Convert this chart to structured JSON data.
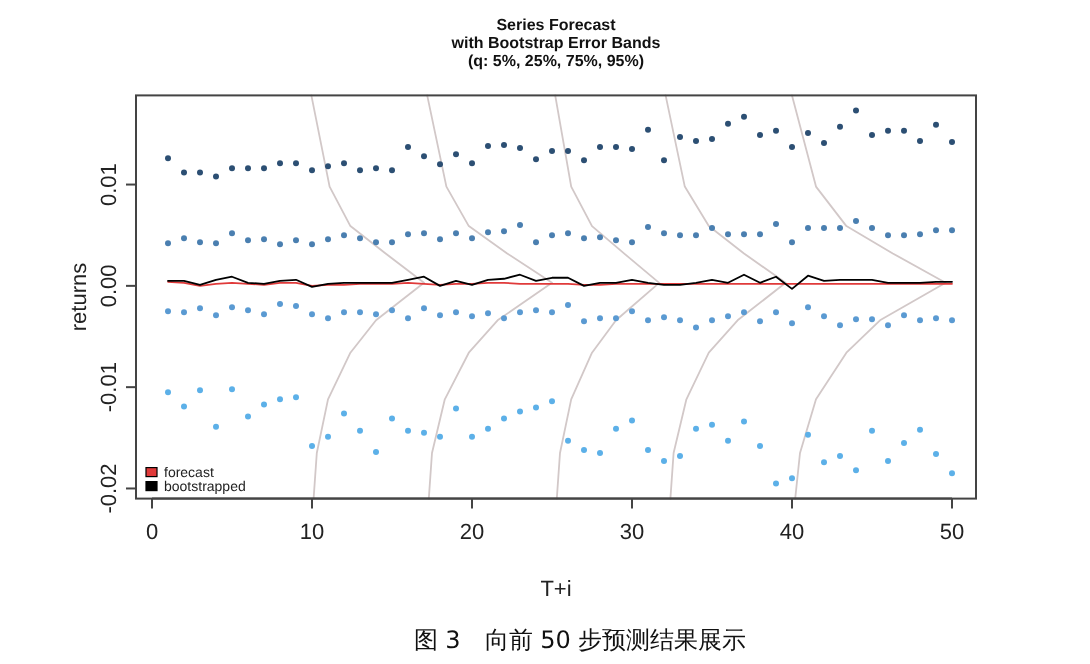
{
  "chart_data": {
    "type": "scatter",
    "title": "Series Forecast",
    "subtitle": "with Bootstrap Error Bands (q: 5%, 25%, 75%, 95%)",
    "xlabel": "T+i",
    "ylabel": "returns",
    "annotations": [
      "图 3　向前 50 步预测结果展示"
    ],
    "xlim": [
      -1,
      51.5
    ],
    "ylim": [
      -0.021,
      0.0188
    ],
    "xticks": [
      0,
      10,
      20,
      30,
      40,
      50
    ],
    "yticks": [
      -0.02,
      -0.01,
      {
        "value": 0,
        "label": "0.00"
      },
      0.01
    ],
    "legend": "bottom left",
    "marker": "circle",
    "x": [
      1,
      2,
      3,
      4,
      5,
      6,
      7,
      8,
      9,
      10,
      11,
      12,
      13,
      14,
      15,
      16,
      17,
      18,
      19,
      20,
      21,
      22,
      23,
      24,
      25,
      26,
      27,
      28,
      29,
      30,
      31,
      32,
      33,
      34,
      35,
      36,
      37,
      38,
      39,
      40,
      41,
      42,
      43,
      44,
      45,
      46,
      47,
      48,
      49,
      50
    ],
    "series": [
      {
        "type": "line",
        "color": "#d2c8c8",
        "marker": "none",
        "x": [
          9.96,
          11.1,
          12.4,
          14.6,
          17.0,
          14.0,
          12.4,
          11.0,
          10.3,
          10.1
        ],
        "values": [
          0.0188,
          0.0098,
          0.0059,
          0.0032,
          0.0003,
          -0.0034,
          -0.0066,
          -0.0112,
          -0.0165,
          -0.021
        ]
      },
      {
        "type": "line",
        "color": "#d2c8c8",
        "marker": "none",
        "x": [
          17.2,
          18.4,
          19.8,
          22.2,
          25.0,
          21.6,
          19.8,
          18.3,
          17.5,
          17.3
        ],
        "values": [
          0.0188,
          0.0098,
          0.0059,
          0.0032,
          0.0003,
          -0.0034,
          -0.0066,
          -0.0112,
          -0.0165,
          -0.021
        ]
      },
      {
        "type": "line",
        "color": "#d2c8c8",
        "marker": "none",
        "x": [
          25.2,
          26.2,
          27.5,
          29.5,
          31.7,
          29.0,
          27.5,
          26.2,
          25.5,
          25.3
        ],
        "values": [
          0.0188,
          0.0098,
          0.0059,
          0.0032,
          0.0003,
          -0.0034,
          -0.0066,
          -0.0112,
          -0.0165,
          -0.021
        ]
      },
      {
        "type": "line",
        "color": "#d2c8c8",
        "marker": "none",
        "x": [
          32.1,
          33.3,
          34.8,
          37.0,
          39.6,
          36.6,
          34.8,
          33.4,
          32.6,
          32.4
        ],
        "values": [
          0.0188,
          0.0098,
          0.0059,
          0.0032,
          0.0003,
          -0.0034,
          -0.0066,
          -0.0112,
          -0.0165,
          -0.021
        ]
      },
      {
        "type": "line",
        "color": "#d2c8c8",
        "marker": "none",
        "x": [
          40.0,
          41.5,
          43.4,
          46.3,
          49.6,
          45.5,
          43.4,
          41.5,
          40.5,
          40.2
        ],
        "values": [
          0.0188,
          0.0098,
          0.0059,
          0.0032,
          0.0003,
          -0.0034,
          -0.0066,
          -0.0112,
          -0.0165,
          -0.021
        ]
      },
      {
        "color": "#2c4f73",
        "values": [
          0.0126,
          0.0112,
          0.0112,
          0.0108,
          0.0116,
          0.0116,
          0.0116,
          0.0121,
          0.0121,
          0.0114,
          0.0118,
          0.0121,
          0.0114,
          0.0116,
          0.0114,
          0.0137,
          0.0128,
          0.012,
          0.013,
          0.0121,
          0.0138,
          0.0139,
          0.0136,
          0.0125,
          0.0133,
          0.0133,
          0.0124,
          0.0137,
          0.0137,
          0.0135,
          0.0154,
          0.0124,
          0.0147,
          0.0143,
          0.0145,
          0.016,
          0.0167,
          0.0149,
          0.0153,
          0.0137,
          0.0151,
          0.0141,
          0.0157,
          0.0173,
          0.0149,
          0.0153,
          0.0153,
          0.0143,
          0.0159,
          0.0142
        ]
      },
      {
        "color": "#4a7fb0",
        "values": [
          0.0042,
          0.0047,
          0.0043,
          0.0042,
          0.0052,
          0.0045,
          0.0046,
          0.0041,
          0.0045,
          0.0041,
          0.0046,
          0.005,
          0.0047,
          0.0043,
          0.0043,
          0.0051,
          0.0052,
          0.0046,
          0.0052,
          0.0047,
          0.0053,
          0.0054,
          0.006,
          0.0043,
          0.005,
          0.0052,
          0.0047,
          0.0048,
          0.0045,
          0.0043,
          0.0058,
          0.0052,
          0.005,
          0.005,
          0.0057,
          0.0051,
          0.0051,
          0.0051,
          0.0061,
          0.0043,
          0.0057,
          0.0057,
          0.0057,
          0.0064,
          0.0057,
          0.005,
          0.005,
          0.0051,
          0.0055,
          0.0055
        ]
      },
      {
        "color": "#5a9ad2",
        "values": [
          -0.0025,
          -0.0026,
          -0.0022,
          -0.0029,
          -0.0021,
          -0.0024,
          -0.0028,
          -0.0018,
          -0.002,
          -0.0028,
          -0.0032,
          -0.0026,
          -0.0026,
          -0.0028,
          -0.0024,
          -0.0032,
          -0.0022,
          -0.0029,
          -0.0026,
          -0.003,
          -0.0027,
          -0.0032,
          -0.0026,
          -0.0024,
          -0.0026,
          -0.0019,
          -0.0035,
          -0.0032,
          -0.0032,
          -0.0025,
          -0.0034,
          -0.0031,
          -0.0034,
          -0.0041,
          -0.0034,
          -0.003,
          -0.0026,
          -0.0035,
          -0.0026,
          -0.0037,
          -0.0021,
          -0.003,
          -0.0039,
          -0.0033,
          -0.0033,
          -0.0039,
          -0.0029,
          -0.0034,
          -0.0032,
          -0.0034
        ]
      },
      {
        "color": "#5cb0e8",
        "values": [
          -0.0105,
          -0.0119,
          -0.0103,
          -0.0139,
          -0.0102,
          -0.0129,
          -0.0117,
          -0.0112,
          -0.011,
          -0.0158,
          -0.0149,
          -0.0126,
          -0.0143,
          -0.0164,
          -0.0131,
          -0.0143,
          -0.0145,
          -0.0149,
          -0.0121,
          -0.0149,
          -0.0141,
          -0.0131,
          -0.0124,
          -0.012,
          -0.0114,
          -0.0153,
          -0.0162,
          -0.0165,
          -0.0141,
          -0.0133,
          -0.0162,
          -0.0173,
          -0.0168,
          -0.0141,
          -0.0137,
          -0.0153,
          -0.0134,
          -0.0158,
          -0.0195,
          -0.019,
          -0.0147,
          -0.0174,
          -0.0168,
          -0.0182,
          -0.0143,
          -0.0173,
          -0.0155,
          -0.0142,
          -0.0166,
          -0.0185
        ]
      },
      {
        "type": "line",
        "name": "forecast",
        "color": "#e03a3a",
        "marker": "none",
        "values": [
          0.0004,
          0.0003,
          0.0,
          0.0002,
          0.0003,
          0.0002,
          0.0001,
          0.0003,
          0.0003,
          0.0,
          0.0001,
          0.0001,
          0.0002,
          0.0002,
          0.0002,
          0.0003,
          0.0002,
          0.0001,
          0.0002,
          0.0002,
          0.0003,
          0.0003,
          0.0002,
          0.0002,
          0.0002,
          0.0002,
          0.0001,
          0.0001,
          0.0002,
          0.0002,
          0.0002,
          0.0002,
          0.0002,
          0.0002,
          0.0002,
          0.0002,
          0.0002,
          0.0002,
          0.0002,
          0.0002,
          0.0002,
          0.0002,
          0.0002,
          0.0002,
          0.0002,
          0.0002,
          0.0002,
          0.0002,
          0.0002,
          0.0002
        ]
      },
      {
        "type": "line",
        "name": "bootstrapped",
        "color": "#000000",
        "marker": "none",
        "values": [
          0.0005,
          0.0005,
          0.0001,
          0.0006,
          0.0009,
          0.0003,
          0.0002,
          0.0005,
          0.0006,
          -0.0001,
          0.0002,
          0.0003,
          0.0003,
          0.0003,
          0.0003,
          0.0006,
          0.0009,
          0.0,
          0.0005,
          0.0001,
          0.0006,
          0.0007,
          0.0011,
          0.0005,
          0.0008,
          0.0008,
          0.0,
          0.0003,
          0.0003,
          0.0006,
          0.0003,
          0.0001,
          0.0001,
          0.0003,
          0.0006,
          0.0003,
          0.0011,
          0.0003,
          0.0009,
          -0.0003,
          0.001,
          0.0005,
          0.0006,
          0.0006,
          0.0006,
          0.0003,
          0.0003,
          0.0003,
          0.0004,
          0.0004
        ]
      }
    ]
  }
}
